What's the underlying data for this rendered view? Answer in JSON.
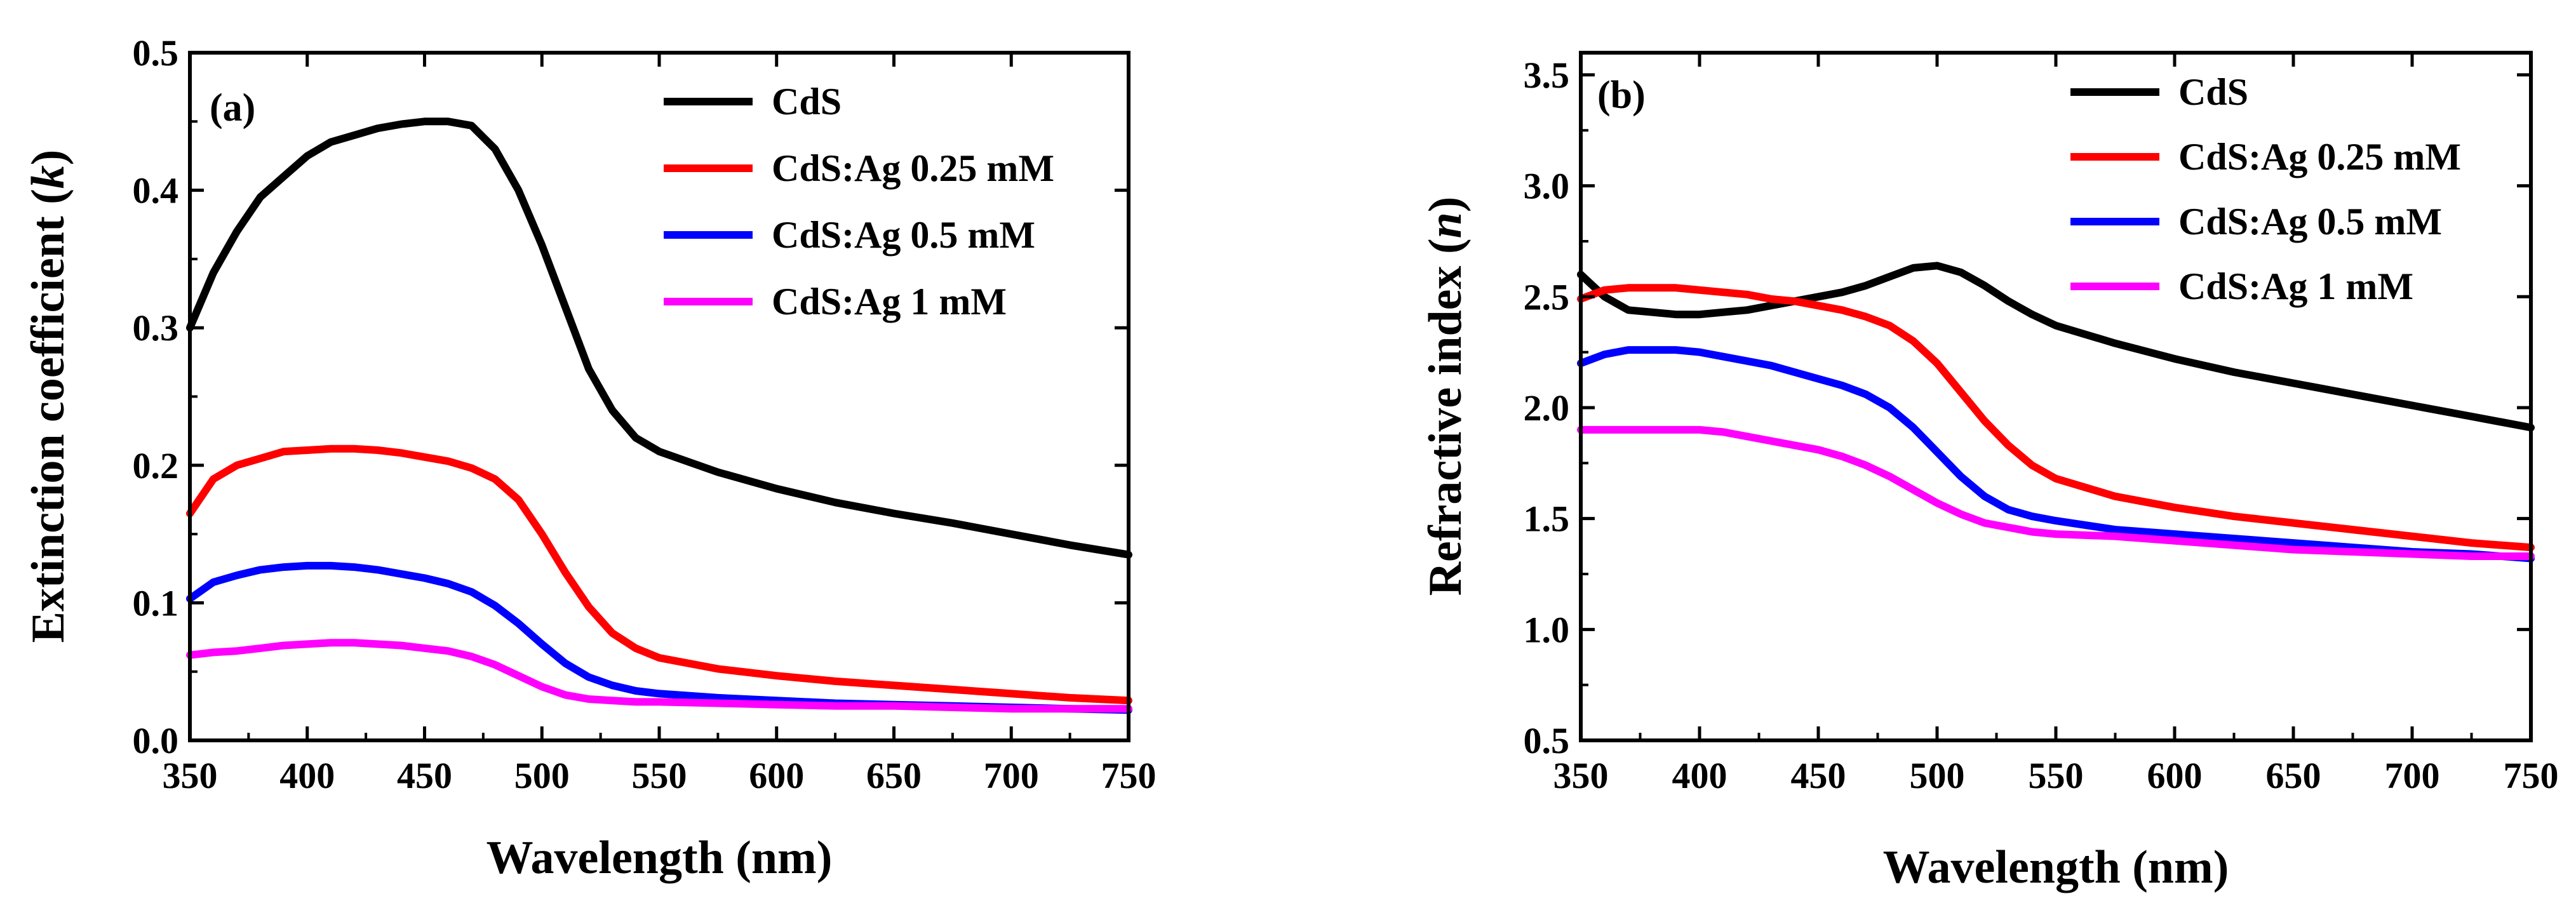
{
  "chart_data": [
    {
      "type": "line",
      "panel_label": "(a)",
      "xlabel": "Wavelength (nm)",
      "ylabel": "Extinction coefficient",
      "ylabel_symbol": "k",
      "xlim": [
        350,
        750
      ],
      "ylim": [
        0.0,
        0.5
      ],
      "xticks": [
        350,
        400,
        450,
        500,
        550,
        600,
        650,
        700,
        750
      ],
      "xtick_labels": [
        "350",
        "400",
        "450",
        "500",
        "550",
        "600",
        "650",
        "700",
        "750"
      ],
      "yticks": [
        0.0,
        0.1,
        0.2,
        0.3,
        0.4,
        0.5
      ],
      "ytick_labels": [
        "0.0",
        "0.1",
        "0.2",
        "0.3",
        "0.4",
        "0.5"
      ],
      "grid": false,
      "legend_position": "top-right",
      "series": [
        {
          "name": "CdS",
          "color": "#000000",
          "x": [
            350,
            360,
            370,
            380,
            390,
            400,
            410,
            420,
            430,
            440,
            450,
            460,
            470,
            480,
            490,
            500,
            510,
            520,
            530,
            540,
            550,
            575,
            600,
            625,
            650,
            675,
            700,
            725,
            750
          ],
          "y": [
            0.3,
            0.34,
            0.37,
            0.395,
            0.41,
            0.425,
            0.435,
            0.44,
            0.445,
            0.448,
            0.45,
            0.45,
            0.447,
            0.43,
            0.4,
            0.36,
            0.315,
            0.27,
            0.24,
            0.22,
            0.21,
            0.195,
            0.183,
            0.173,
            0.165,
            0.158,
            0.15,
            0.142,
            0.135
          ]
        },
        {
          "name": "CdS:Ag 0.25 mM",
          "color": "#ff0000",
          "x": [
            350,
            360,
            370,
            380,
            390,
            400,
            410,
            420,
            430,
            440,
            450,
            460,
            470,
            480,
            490,
            500,
            510,
            520,
            530,
            540,
            550,
            575,
            600,
            625,
            650,
            675,
            700,
            725,
            750
          ],
          "y": [
            0.165,
            0.19,
            0.2,
            0.205,
            0.21,
            0.211,
            0.212,
            0.212,
            0.211,
            0.209,
            0.206,
            0.203,
            0.198,
            0.19,
            0.175,
            0.15,
            0.122,
            0.097,
            0.078,
            0.067,
            0.06,
            0.052,
            0.047,
            0.043,
            0.04,
            0.037,
            0.034,
            0.031,
            0.029
          ]
        },
        {
          "name": "CdS:Ag 0.5 mM",
          "color": "#0000ff",
          "x": [
            350,
            360,
            370,
            380,
            390,
            400,
            410,
            420,
            430,
            440,
            450,
            460,
            470,
            480,
            490,
            500,
            510,
            520,
            530,
            540,
            550,
            575,
            600,
            625,
            650,
            675,
            700,
            725,
            750
          ],
          "y": [
            0.103,
            0.115,
            0.12,
            0.124,
            0.126,
            0.127,
            0.127,
            0.126,
            0.124,
            0.121,
            0.118,
            0.114,
            0.108,
            0.098,
            0.085,
            0.07,
            0.056,
            0.046,
            0.04,
            0.036,
            0.034,
            0.031,
            0.029,
            0.027,
            0.026,
            0.025,
            0.024,
            0.023,
            0.022
          ]
        },
        {
          "name": "CdS:Ag 1 mM",
          "color": "#ff00ff",
          "x": [
            350,
            360,
            370,
            380,
            390,
            400,
            410,
            420,
            430,
            440,
            450,
            460,
            470,
            480,
            490,
            500,
            510,
            520,
            530,
            540,
            550,
            575,
            600,
            625,
            650,
            675,
            700,
            725,
            750
          ],
          "y": [
            0.062,
            0.064,
            0.065,
            0.067,
            0.069,
            0.07,
            0.071,
            0.071,
            0.07,
            0.069,
            0.067,
            0.065,
            0.061,
            0.055,
            0.047,
            0.039,
            0.033,
            0.03,
            0.029,
            0.028,
            0.028,
            0.027,
            0.026,
            0.025,
            0.025,
            0.024,
            0.023,
            0.023,
            0.023
          ]
        }
      ]
    },
    {
      "type": "line",
      "panel_label": "(b)",
      "xlabel": "Wavelength (nm)",
      "ylabel": "Refractive index",
      "ylabel_symbol": "n",
      "xlim": [
        350,
        750
      ],
      "ylim": [
        0.5,
        3.6
      ],
      "xticks": [
        350,
        400,
        450,
        500,
        550,
        600,
        650,
        700,
        750
      ],
      "xtick_labels": [
        "350",
        "400",
        "450",
        "500",
        "550",
        "600",
        "650",
        "700",
        "750"
      ],
      "yticks": [
        0.5,
        1.0,
        1.5,
        2.0,
        2.5,
        3.0,
        3.5
      ],
      "ytick_labels": [
        "0.5",
        "1.0",
        "1.5",
        "2.0",
        "2.5",
        "3.0",
        "3.5"
      ],
      "grid": false,
      "legend_position": "top-right",
      "series": [
        {
          "name": "CdS",
          "color": "#000000",
          "x": [
            350,
            360,
            370,
            380,
            390,
            400,
            410,
            420,
            430,
            440,
            450,
            460,
            470,
            480,
            490,
            500,
            510,
            520,
            530,
            540,
            550,
            575,
            600,
            625,
            650,
            675,
            700,
            725,
            750
          ],
          "y": [
            2.6,
            2.5,
            2.44,
            2.43,
            2.42,
            2.42,
            2.43,
            2.44,
            2.46,
            2.48,
            2.5,
            2.52,
            2.55,
            2.59,
            2.63,
            2.64,
            2.61,
            2.55,
            2.48,
            2.42,
            2.37,
            2.29,
            2.22,
            2.16,
            2.11,
            2.06,
            2.01,
            1.96,
            1.91
          ]
        },
        {
          "name": "CdS:Ag 0.25 mM",
          "color": "#ff0000",
          "x": [
            350,
            360,
            370,
            380,
            390,
            400,
            410,
            420,
            430,
            440,
            450,
            460,
            470,
            480,
            490,
            500,
            510,
            520,
            530,
            540,
            550,
            575,
            600,
            625,
            650,
            675,
            700,
            725,
            750
          ],
          "y": [
            2.49,
            2.53,
            2.54,
            2.54,
            2.54,
            2.53,
            2.52,
            2.51,
            2.49,
            2.48,
            2.46,
            2.44,
            2.41,
            2.37,
            2.3,
            2.2,
            2.07,
            1.94,
            1.83,
            1.74,
            1.68,
            1.6,
            1.55,
            1.51,
            1.48,
            1.45,
            1.42,
            1.39,
            1.37
          ]
        },
        {
          "name": "CdS:Ag 0.5 mM",
          "color": "#0000ff",
          "x": [
            350,
            360,
            370,
            380,
            390,
            400,
            410,
            420,
            430,
            440,
            450,
            460,
            470,
            480,
            490,
            500,
            510,
            520,
            530,
            540,
            550,
            575,
            600,
            625,
            650,
            675,
            700,
            725,
            750
          ],
          "y": [
            2.2,
            2.24,
            2.26,
            2.26,
            2.26,
            2.25,
            2.23,
            2.21,
            2.19,
            2.16,
            2.13,
            2.1,
            2.06,
            2.0,
            1.91,
            1.8,
            1.69,
            1.6,
            1.54,
            1.51,
            1.49,
            1.45,
            1.43,
            1.41,
            1.39,
            1.37,
            1.35,
            1.34,
            1.32
          ]
        },
        {
          "name": "CdS:Ag 1 mM",
          "color": "#ff00ff",
          "x": [
            350,
            360,
            370,
            380,
            390,
            400,
            410,
            420,
            430,
            440,
            450,
            460,
            470,
            480,
            490,
            500,
            510,
            520,
            530,
            540,
            550,
            575,
            600,
            625,
            650,
            675,
            700,
            725,
            750
          ],
          "y": [
            1.9,
            1.9,
            1.9,
            1.9,
            1.9,
            1.9,
            1.89,
            1.87,
            1.85,
            1.83,
            1.81,
            1.78,
            1.74,
            1.69,
            1.63,
            1.57,
            1.52,
            1.48,
            1.46,
            1.44,
            1.43,
            1.42,
            1.4,
            1.38,
            1.36,
            1.35,
            1.34,
            1.33,
            1.33
          ]
        }
      ]
    }
  ]
}
